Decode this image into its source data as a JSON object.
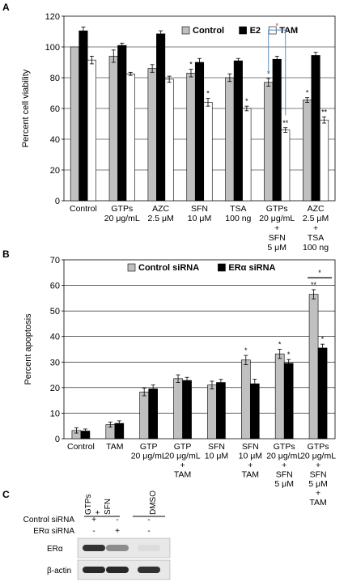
{
  "panels": {
    "a": "A",
    "b": "B",
    "c": "C"
  },
  "chart_data": [
    {
      "type": "bar",
      "ylabel": "Percent cell viability",
      "ylim": [
        0,
        120
      ],
      "yticks": [
        0,
        20,
        40,
        60,
        80,
        100,
        120
      ],
      "grid": true,
      "legend": "top-right",
      "categories": [
        [
          "Control"
        ],
        [
          "GTPs",
          "20 μg/mL"
        ],
        [
          "AZC",
          "2.5 μM"
        ],
        [
          "SFN",
          "10 μM"
        ],
        [
          "TSA",
          "100 ng"
        ],
        [
          "GTPs",
          "20 μg/mL",
          "+",
          "SFN",
          "5 μM"
        ],
        [
          "AZC",
          "2.5 μM",
          "+",
          "TSA",
          "100 ng"
        ]
      ],
      "series": [
        {
          "name": "Control",
          "color": "#c0c0c0",
          "values": [
            100,
            94,
            86,
            83,
            80,
            77,
            65.5
          ],
          "errors": [
            0,
            4,
            2.5,
            2.5,
            2.5,
            2.5,
            1.5
          ]
        },
        {
          "name": "E2",
          "color": "#000000",
          "values": [
            110.5,
            101,
            108.5,
            90,
            91,
            92,
            94.5
          ],
          "errors": [
            2.5,
            1.5,
            2,
            2.5,
            1.5,
            2,
            2
          ]
        },
        {
          "name": "TAM",
          "color": "#ffffff",
          "values": [
            91.5,
            82.5,
            79,
            64,
            60,
            46,
            52.5
          ],
          "errors": [
            2.5,
            1,
            2,
            2.5,
            1.5,
            1.5,
            2
          ]
        }
      ],
      "annotations": [
        {
          "group": 3,
          "series": 0,
          "text": "*"
        },
        {
          "group": 3,
          "series": 2,
          "text": "*"
        },
        {
          "group": 4,
          "series": 2,
          "text": "*"
        },
        {
          "group": 5,
          "series": 0,
          "text": "*"
        },
        {
          "group": 5,
          "series": 2,
          "text": "**"
        },
        {
          "group": 6,
          "series": 0,
          "text": "*"
        },
        {
          "group": 6,
          "series": 2,
          "text": "**"
        }
      ],
      "bracket": {
        "group": 5,
        "text": "*",
        "color": "#e02020",
        "line_color": "#5b8ec9"
      }
    },
    {
      "type": "bar",
      "ylabel": "Percent apoptosis",
      "ylim": [
        0,
        70
      ],
      "yticks": [
        0,
        10,
        20,
        30,
        40,
        50,
        60,
        70
      ],
      "grid": true,
      "legend": "top-left",
      "categories": [
        [
          "Control"
        ],
        [
          "TAM"
        ],
        [
          "GTP",
          "20 μg/mL"
        ],
        [
          "GTP",
          "20 μg/mL",
          "+",
          "TAM"
        ],
        [
          "SFN",
          "10 μM"
        ],
        [
          "SFN",
          "10 μM",
          "+",
          "TAM"
        ],
        [
          "GTPs",
          "20 μg/mL",
          "+",
          "SFN",
          "5 μM"
        ],
        [
          "GTPs",
          "20 μg/mL",
          "+",
          "SFN",
          "5 μM",
          "+",
          "TAM"
        ]
      ],
      "series": [
        {
          "name": "Control siRNA",
          "color": "#c0c0c0",
          "values": [
            3.2,
            5.5,
            18.3,
            23.5,
            21,
            30.8,
            33.2,
            56.5
          ],
          "errors": [
            1,
            1,
            1.5,
            1.5,
            1.5,
            1.8,
            1.8,
            1.8
          ]
        },
        {
          "name": "ERα siRNA",
          "color": "#000000",
          "values": [
            3,
            6,
            19.5,
            22.8,
            22,
            21.5,
            29.5,
            35.5
          ],
          "errors": [
            0.8,
            1,
            1.5,
            1.2,
            1.2,
            1.8,
            1.5,
            1.5
          ]
        }
      ],
      "annotations": [
        {
          "group": 5,
          "series": 0,
          "text": "*"
        },
        {
          "group": 6,
          "series": 0,
          "text": "*"
        },
        {
          "group": 6,
          "series": 1,
          "text": "*"
        },
        {
          "group": 7,
          "series": 0,
          "text": "**"
        },
        {
          "group": 7,
          "series": 1,
          "text": "*"
        }
      ],
      "bracket": {
        "group": 7,
        "text": "*"
      }
    }
  ],
  "blot": {
    "lane_labels": [
      [
        "GTPs",
        "+",
        "SFN"
      ],
      [
        "DMSO"
      ]
    ],
    "rows": [
      {
        "label": "Control siRNA",
        "marks": [
          "+",
          "-",
          "-"
        ]
      },
      {
        "label": "ERα  siRNA",
        "marks": [
          "-",
          "+",
          "-"
        ]
      }
    ],
    "bands": [
      {
        "label": "ERα",
        "intensities": [
          0.9,
          0.45,
          0.05
        ]
      },
      {
        "label": "β-actin",
        "intensities": [
          0.95,
          0.95,
          0.9
        ]
      }
    ]
  }
}
